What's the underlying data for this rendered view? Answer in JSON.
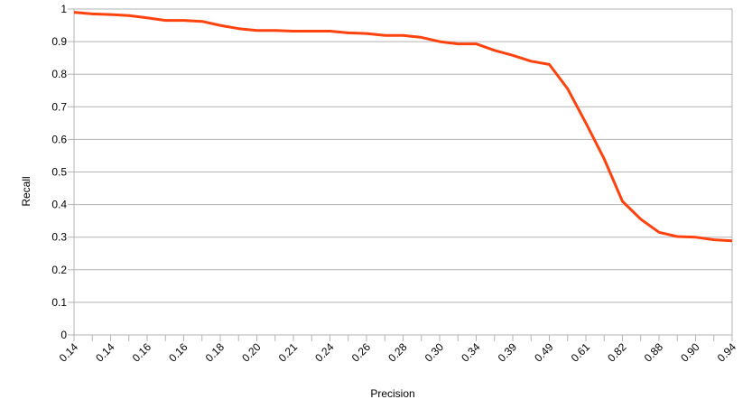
{
  "chart_data": {
    "type": "line",
    "xlabel": "Precision",
    "ylabel": "Recall",
    "ylim": [
      0,
      1
    ],
    "y_ticks": [
      "0",
      "0.1",
      "0.2",
      "0.3",
      "0.4",
      "0.5",
      "0.6",
      "0.7",
      "0.8",
      "0.9",
      "1"
    ],
    "grid": true,
    "legend": "none",
    "x_tick_labels": [
      "0.14",
      "0.14",
      "0.16",
      "0.16",
      "0.18",
      "0.20",
      "0.21",
      "0.24",
      "0.26",
      "0.28",
      "0.30",
      "0.34",
      "0.39",
      "0.49",
      "0.61",
      "0.82",
      "0.88",
      "0.90",
      "0.94"
    ],
    "series": [
      {
        "color": "#ff420e",
        "values": [
          0.99,
          0.985,
          0.983,
          0.98,
          0.973,
          0.965,
          0.965,
          0.962,
          0.95,
          0.94,
          0.934,
          0.934,
          0.932,
          0.932,
          0.932,
          0.927,
          0.925,
          0.919,
          0.919,
          0.913,
          0.9,
          0.893,
          0.893,
          0.873,
          0.858,
          0.84,
          0.83,
          0.755,
          0.65,
          0.54,
          0.41,
          0.355,
          0.315,
          0.302,
          0.3,
          0.292,
          0.289
        ]
      }
    ]
  }
}
